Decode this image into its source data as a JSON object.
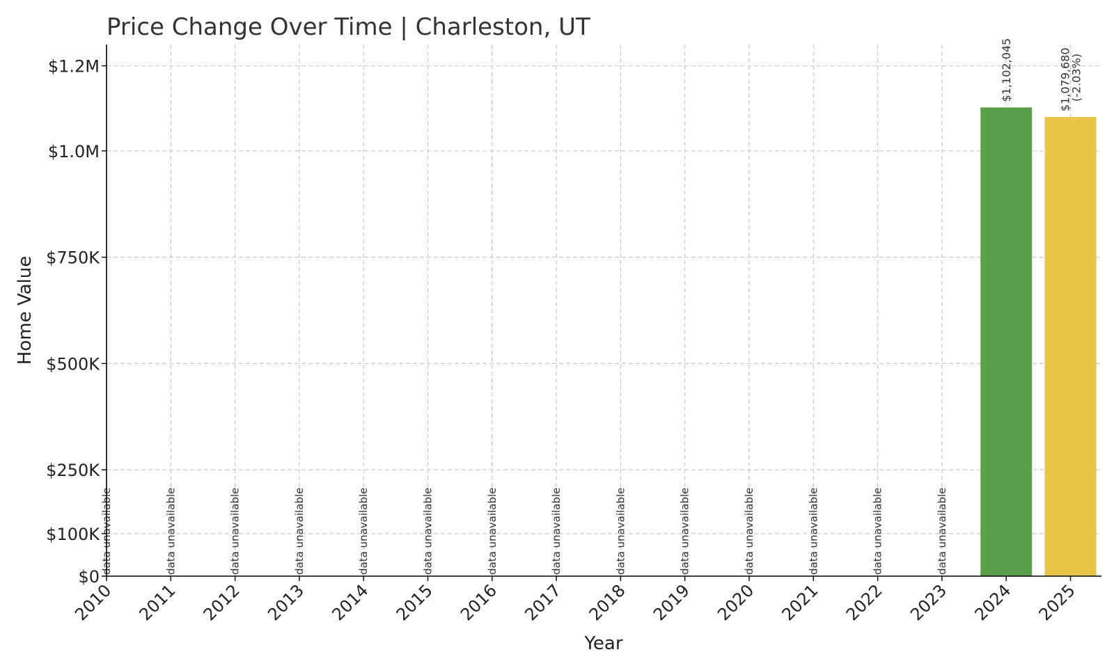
{
  "chart_data": {
    "type": "bar",
    "title": "Price Change Over Time | Charleston, UT",
    "xlabel": "Year",
    "ylabel": "Home Value",
    "categories": [
      "2010",
      "2011",
      "2012",
      "2013",
      "2014",
      "2015",
      "2016",
      "2017",
      "2018",
      "2019",
      "2020",
      "2021",
      "2022",
      "2023",
      "2024",
      "2025"
    ],
    "values": [
      null,
      null,
      null,
      null,
      null,
      null,
      null,
      null,
      null,
      null,
      null,
      null,
      null,
      null,
      1102045,
      1079680
    ],
    "bar_colors": [
      "",
      "",
      "",
      "",
      "",
      "",
      "",
      "",
      "",
      "",
      "",
      "",
      "",
      "",
      "#5aa04b",
      "#e8c547"
    ],
    "data_labels": [
      "data unavailable",
      "data unavailable",
      "data unavailable",
      "data unavailable",
      "data unavailable",
      "data unavailable",
      "data unavailable",
      "data unavailable",
      "data unavailable",
      "data unavailable",
      "data unavailable",
      "data unavailable",
      "data unavailable",
      "data unavailable",
      "$1,102,045",
      "$1,079,680"
    ],
    "change_labels": [
      "",
      "",
      "",
      "",
      "",
      "",
      "",
      "",
      "",
      "",
      "",
      "",
      "",
      "",
      "",
      "(-2.03%)"
    ],
    "ylim": [
      0,
      1250000
    ],
    "yticks": [
      {
        "value": 0,
        "label": "$0"
      },
      {
        "value": 100000,
        "label": "$100K"
      },
      {
        "value": 250000,
        "label": "$250K"
      },
      {
        "value": 500000,
        "label": "$500K"
      },
      {
        "value": 750000,
        "label": "$750K"
      },
      {
        "value": 1000000,
        "label": "$1.0M"
      },
      {
        "value": 1200000,
        "label": "$1.2M"
      }
    ],
    "grid": true,
    "legend": "none"
  }
}
